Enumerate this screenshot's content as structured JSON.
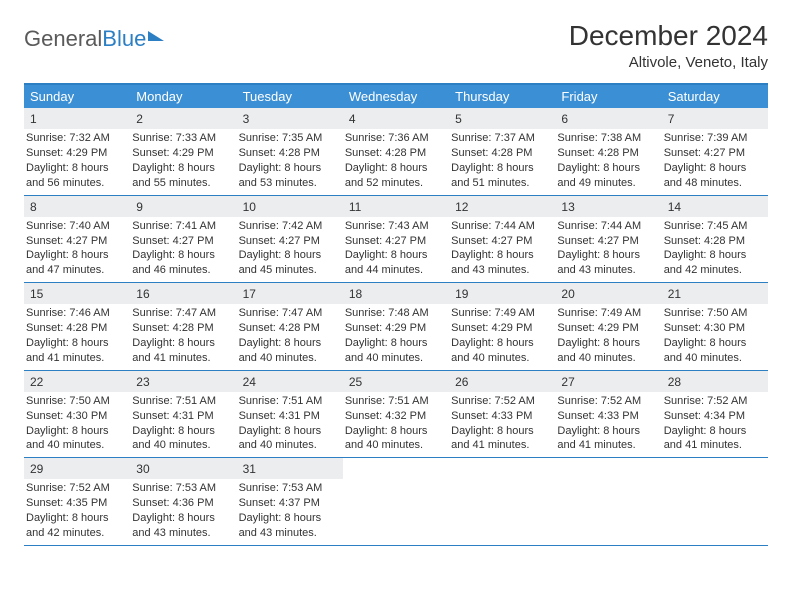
{
  "logo": {
    "text_gray": "General",
    "text_blue": "Blue"
  },
  "title": "December 2024",
  "location": "Altivole, Veneto, Italy",
  "colors": {
    "header_bg": "#3b8fd4",
    "border": "#2d7fc4",
    "daynum_bg": "#ebedef",
    "text": "#333333",
    "bg": "#ffffff"
  },
  "dow": [
    "Sunday",
    "Monday",
    "Tuesday",
    "Wednesday",
    "Thursday",
    "Friday",
    "Saturday"
  ],
  "weeks": [
    [
      {
        "n": "1",
        "sr": "Sunrise: 7:32 AM",
        "ss": "Sunset: 4:29 PM",
        "dl1": "Daylight: 8 hours",
        "dl2": "and 56 minutes."
      },
      {
        "n": "2",
        "sr": "Sunrise: 7:33 AM",
        "ss": "Sunset: 4:29 PM",
        "dl1": "Daylight: 8 hours",
        "dl2": "and 55 minutes."
      },
      {
        "n": "3",
        "sr": "Sunrise: 7:35 AM",
        "ss": "Sunset: 4:28 PM",
        "dl1": "Daylight: 8 hours",
        "dl2": "and 53 minutes."
      },
      {
        "n": "4",
        "sr": "Sunrise: 7:36 AM",
        "ss": "Sunset: 4:28 PM",
        "dl1": "Daylight: 8 hours",
        "dl2": "and 52 minutes."
      },
      {
        "n": "5",
        "sr": "Sunrise: 7:37 AM",
        "ss": "Sunset: 4:28 PM",
        "dl1": "Daylight: 8 hours",
        "dl2": "and 51 minutes."
      },
      {
        "n": "6",
        "sr": "Sunrise: 7:38 AM",
        "ss": "Sunset: 4:28 PM",
        "dl1": "Daylight: 8 hours",
        "dl2": "and 49 minutes."
      },
      {
        "n": "7",
        "sr": "Sunrise: 7:39 AM",
        "ss": "Sunset: 4:27 PM",
        "dl1": "Daylight: 8 hours",
        "dl2": "and 48 minutes."
      }
    ],
    [
      {
        "n": "8",
        "sr": "Sunrise: 7:40 AM",
        "ss": "Sunset: 4:27 PM",
        "dl1": "Daylight: 8 hours",
        "dl2": "and 47 minutes."
      },
      {
        "n": "9",
        "sr": "Sunrise: 7:41 AM",
        "ss": "Sunset: 4:27 PM",
        "dl1": "Daylight: 8 hours",
        "dl2": "and 46 minutes."
      },
      {
        "n": "10",
        "sr": "Sunrise: 7:42 AM",
        "ss": "Sunset: 4:27 PM",
        "dl1": "Daylight: 8 hours",
        "dl2": "and 45 minutes."
      },
      {
        "n": "11",
        "sr": "Sunrise: 7:43 AM",
        "ss": "Sunset: 4:27 PM",
        "dl1": "Daylight: 8 hours",
        "dl2": "and 44 minutes."
      },
      {
        "n": "12",
        "sr": "Sunrise: 7:44 AM",
        "ss": "Sunset: 4:27 PM",
        "dl1": "Daylight: 8 hours",
        "dl2": "and 43 minutes."
      },
      {
        "n": "13",
        "sr": "Sunrise: 7:44 AM",
        "ss": "Sunset: 4:27 PM",
        "dl1": "Daylight: 8 hours",
        "dl2": "and 43 minutes."
      },
      {
        "n": "14",
        "sr": "Sunrise: 7:45 AM",
        "ss": "Sunset: 4:28 PM",
        "dl1": "Daylight: 8 hours",
        "dl2": "and 42 minutes."
      }
    ],
    [
      {
        "n": "15",
        "sr": "Sunrise: 7:46 AM",
        "ss": "Sunset: 4:28 PM",
        "dl1": "Daylight: 8 hours",
        "dl2": "and 41 minutes."
      },
      {
        "n": "16",
        "sr": "Sunrise: 7:47 AM",
        "ss": "Sunset: 4:28 PM",
        "dl1": "Daylight: 8 hours",
        "dl2": "and 41 minutes."
      },
      {
        "n": "17",
        "sr": "Sunrise: 7:47 AM",
        "ss": "Sunset: 4:28 PM",
        "dl1": "Daylight: 8 hours",
        "dl2": "and 40 minutes."
      },
      {
        "n": "18",
        "sr": "Sunrise: 7:48 AM",
        "ss": "Sunset: 4:29 PM",
        "dl1": "Daylight: 8 hours",
        "dl2": "and 40 minutes."
      },
      {
        "n": "19",
        "sr": "Sunrise: 7:49 AM",
        "ss": "Sunset: 4:29 PM",
        "dl1": "Daylight: 8 hours",
        "dl2": "and 40 minutes."
      },
      {
        "n": "20",
        "sr": "Sunrise: 7:49 AM",
        "ss": "Sunset: 4:29 PM",
        "dl1": "Daylight: 8 hours",
        "dl2": "and 40 minutes."
      },
      {
        "n": "21",
        "sr": "Sunrise: 7:50 AM",
        "ss": "Sunset: 4:30 PM",
        "dl1": "Daylight: 8 hours",
        "dl2": "and 40 minutes."
      }
    ],
    [
      {
        "n": "22",
        "sr": "Sunrise: 7:50 AM",
        "ss": "Sunset: 4:30 PM",
        "dl1": "Daylight: 8 hours",
        "dl2": "and 40 minutes."
      },
      {
        "n": "23",
        "sr": "Sunrise: 7:51 AM",
        "ss": "Sunset: 4:31 PM",
        "dl1": "Daylight: 8 hours",
        "dl2": "and 40 minutes."
      },
      {
        "n": "24",
        "sr": "Sunrise: 7:51 AM",
        "ss": "Sunset: 4:31 PM",
        "dl1": "Daylight: 8 hours",
        "dl2": "and 40 minutes."
      },
      {
        "n": "25",
        "sr": "Sunrise: 7:51 AM",
        "ss": "Sunset: 4:32 PM",
        "dl1": "Daylight: 8 hours",
        "dl2": "and 40 minutes."
      },
      {
        "n": "26",
        "sr": "Sunrise: 7:52 AM",
        "ss": "Sunset: 4:33 PM",
        "dl1": "Daylight: 8 hours",
        "dl2": "and 41 minutes."
      },
      {
        "n": "27",
        "sr": "Sunrise: 7:52 AM",
        "ss": "Sunset: 4:33 PM",
        "dl1": "Daylight: 8 hours",
        "dl2": "and 41 minutes."
      },
      {
        "n": "28",
        "sr": "Sunrise: 7:52 AM",
        "ss": "Sunset: 4:34 PM",
        "dl1": "Daylight: 8 hours",
        "dl2": "and 41 minutes."
      }
    ],
    [
      {
        "n": "29",
        "sr": "Sunrise: 7:52 AM",
        "ss": "Sunset: 4:35 PM",
        "dl1": "Daylight: 8 hours",
        "dl2": "and 42 minutes."
      },
      {
        "n": "30",
        "sr": "Sunrise: 7:53 AM",
        "ss": "Sunset: 4:36 PM",
        "dl1": "Daylight: 8 hours",
        "dl2": "and 43 minutes."
      },
      {
        "n": "31",
        "sr": "Sunrise: 7:53 AM",
        "ss": "Sunset: 4:37 PM",
        "dl1": "Daylight: 8 hours",
        "dl2": "and 43 minutes."
      },
      null,
      null,
      null,
      null
    ]
  ]
}
